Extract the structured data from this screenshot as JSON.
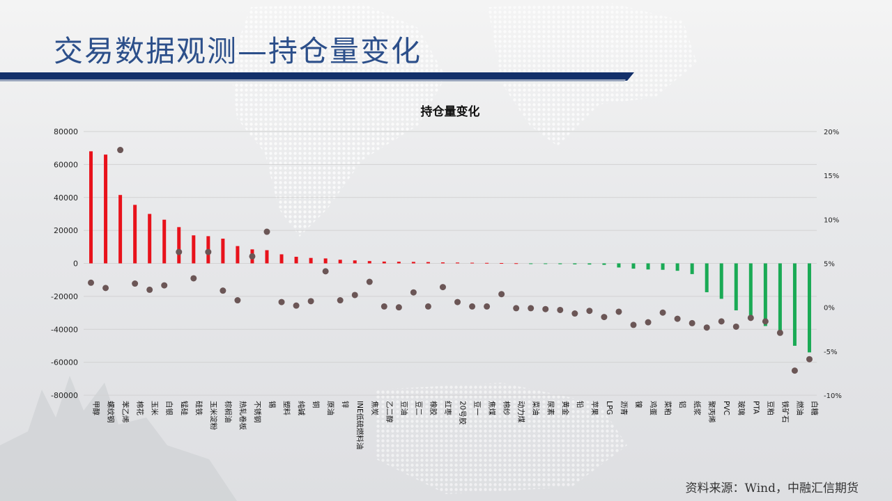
{
  "page": {
    "title": "交易数据观测—持仓量变化",
    "source": "资料来源：Wind，中融汇信期货"
  },
  "colors": {
    "positive_bar": "#e8121b",
    "negative_bar": "#1aaa55",
    "dot": "#6b5656",
    "title": "#2c4f8a"
  },
  "chart_data": {
    "type": "bar",
    "title": "持仓量变化",
    "xlabel": "",
    "ylabel": "",
    "ylim": [
      -80000,
      80000
    ],
    "y_ticks": [
      80000,
      60000,
      40000,
      20000,
      0,
      -20000,
      -40000,
      -60000,
      -80000
    ],
    "y2lim": [
      -10,
      20
    ],
    "y2_ticks": [
      "20%",
      "15%",
      "10%",
      "5%",
      "0%",
      "-5%",
      "-10%"
    ],
    "y2_tick_values": [
      20,
      15,
      10,
      5,
      0,
      -5,
      -10
    ],
    "grid": true,
    "categories": [
      "甲醇",
      "螺纹钢",
      "苯乙烯",
      "棉花",
      "玉米",
      "白银",
      "锰硅",
      "硅铁",
      "玉米淀粉",
      "棕榈油",
      "热轧卷板",
      "不锈钢",
      "锡",
      "塑料",
      "纯碱",
      "铜",
      "原油",
      "锌",
      "INE低硫燃料油",
      "焦炭",
      "乙二醇",
      "豆油",
      "豆二",
      "橡胶",
      "红枣",
      "20号胶",
      "豆一",
      "焦煤",
      "棉纱",
      "动力煤",
      "菜油",
      "尿素",
      "黄金",
      "铅",
      "苹果",
      "LPG",
      "沥青",
      "镍",
      "鸡蛋",
      "菜粕",
      "铝",
      "纸浆",
      "聚丙烯",
      "PVC",
      "玻璃",
      "PTA",
      "豆粕",
      "铁矿石",
      "燃油",
      "白糖"
    ],
    "series": [
      {
        "type": "bar",
        "values": [
          68000,
          66000,
          41500,
          35500,
          30000,
          26500,
          22000,
          17000,
          16500,
          15000,
          10500,
          8500,
          8000,
          5500,
          4000,
          3300,
          3000,
          2200,
          1800,
          1400,
          1100,
          1000,
          900,
          800,
          600,
          500,
          400,
          300,
          200,
          100,
          -300,
          -400,
          -500,
          -600,
          -700,
          -900,
          -2500,
          -3200,
          -3700,
          -3900,
          -4500,
          -6500,
          -17500,
          -21500,
          -28500,
          -32000,
          -38000,
          -43000,
          -50000,
          -54000
        ]
      },
      {
        "type": "scatter",
        "values": [
          2.8,
          2.2,
          17.9,
          2.7,
          2.0,
          2.5,
          6.3,
          3.3,
          6.3,
          1.9,
          0.8,
          5.8,
          8.6,
          0.6,
          0.2,
          0.7,
          4.1,
          0.8,
          1.4,
          2.9,
          0.1,
          0.0,
          1.7,
          0.1,
          2.3,
          0.6,
          0.1,
          0.1,
          1.5,
          -0.1,
          -0.1,
          -0.2,
          -0.3,
          -0.7,
          -0.4,
          -1.1,
          -0.5,
          -2.0,
          -1.7,
          -0.6,
          -1.3,
          -1.8,
          -2.3,
          -1.6,
          -2.2,
          -1.2,
          -1.6,
          -2.9,
          -7.2,
          -5.9
        ]
      }
    ]
  }
}
